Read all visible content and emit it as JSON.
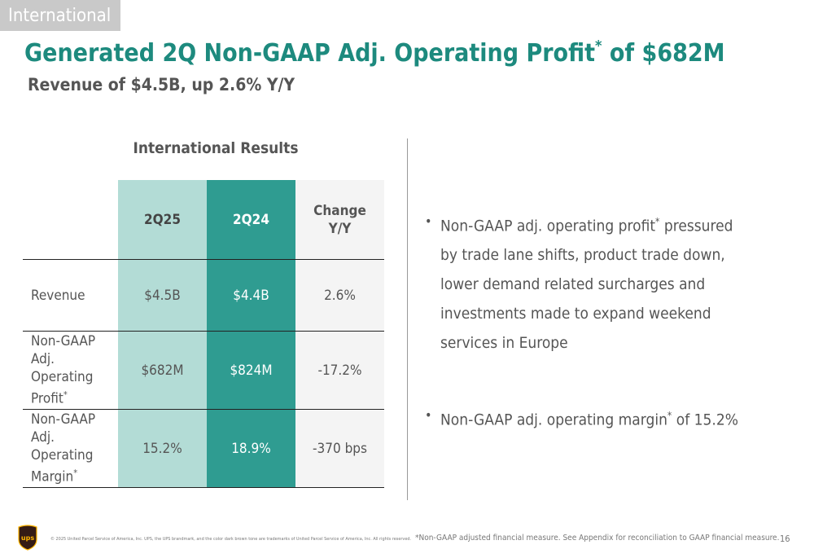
{
  "section_tab": "International",
  "title": {
    "main": "Generated 2Q Non-GAAP Adj. Operating Profit",
    "asterisk": "*",
    "suffix": " of $682M"
  },
  "subtitle": "Revenue of $4.5B, up 2.6% Y/Y",
  "table": {
    "title": "International Results",
    "columns": [
      "2Q25",
      "2Q24"
    ],
    "change_header": [
      "Change",
      "Y/Y"
    ],
    "rows": [
      {
        "label": [
          "Revenue"
        ],
        "asterisk": "",
        "values": [
          "$4.5B",
          "$4.4B",
          "2.6%"
        ]
      },
      {
        "label": [
          "Non-GAAP",
          "Adj.",
          "Operating",
          "Profit"
        ],
        "asterisk": "*",
        "values": [
          "$682M",
          "$824M",
          "-17.2%"
        ]
      },
      {
        "label": [
          "Non-GAAP",
          "Adj.",
          "Operating",
          "Margin"
        ],
        "asterisk": "*",
        "values": [
          "15.2%",
          "18.9%",
          "-370 bps"
        ]
      }
    ],
    "colors": {
      "col_2q25": "#b3dcd6",
      "col_2q24": "#2f9c91",
      "col_change": "#f4f4f4"
    }
  },
  "bullets": [
    {
      "lines": [
        "Non-GAAP adj. operating profit",
        "by trade lane shifts, product trade down,",
        "lower demand related surcharges and",
        "investments made to expand weekend",
        "services in Europe"
      ],
      "asterisk": "*",
      "after_asterisk": " pressured"
    },
    {
      "lines": [
        "Non-GAAP adj. operating margin"
      ],
      "asterisk": "*",
      "after_asterisk": " of 15.2%"
    }
  ],
  "footer": {
    "logo_icon": "ups-shield-logo",
    "logo_text": "ups",
    "copyright": "© 2025 United Parcel Service of America, Inc. UPS, the UPS brandmark, and the color dark brown tone are trademarks of United Parcel Service of America, Inc. All rights reserved.",
    "footnote": "*Non-GAAP adjusted financial measure. See Appendix for reconciliation to GAAP financial measure.",
    "page_number": "16"
  },
  "colors": {
    "accent": "#1d8a7e",
    "brand_brown": "#351c15",
    "brand_gold": "#ffb500"
  }
}
